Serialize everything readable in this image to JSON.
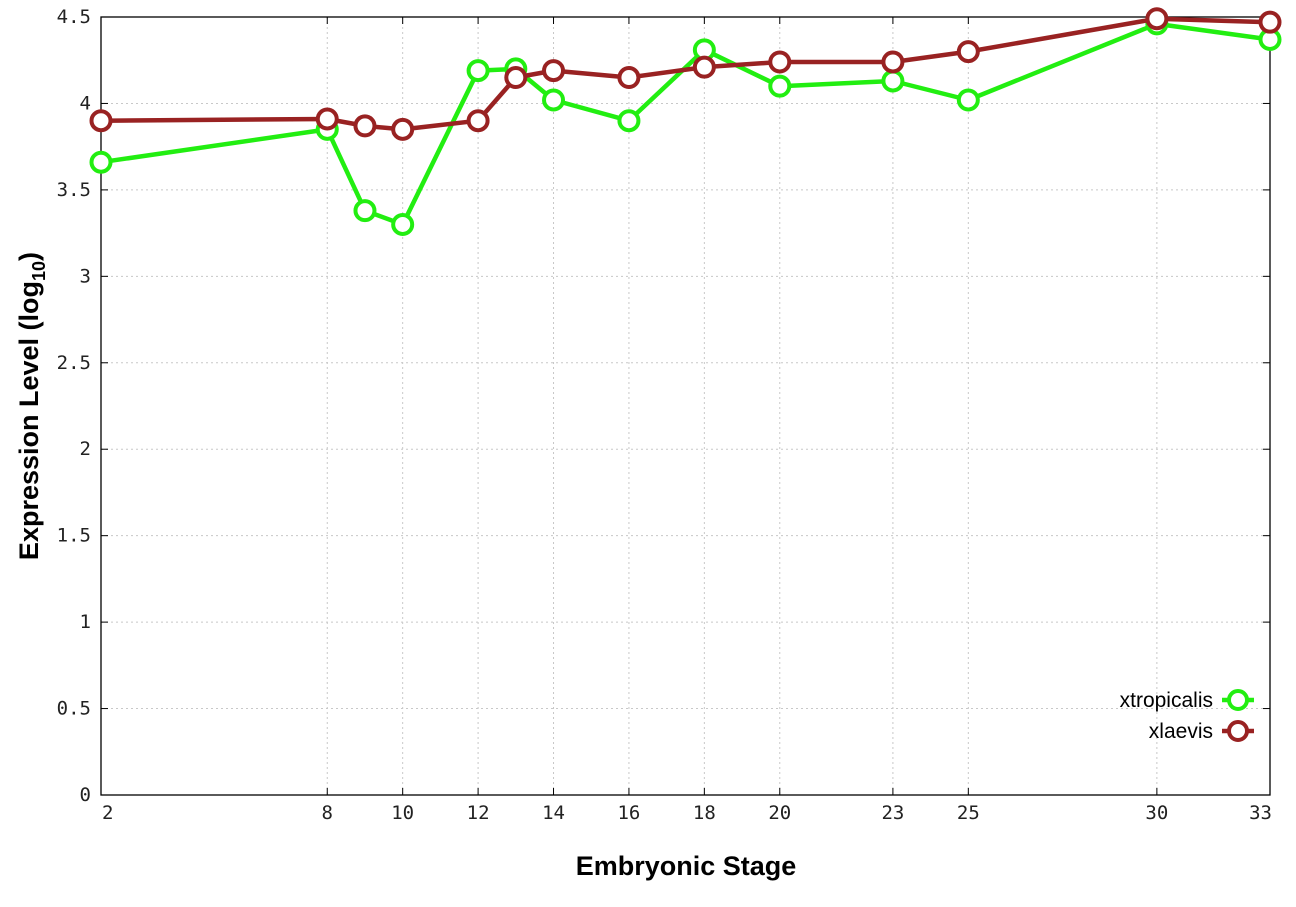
{
  "chart_data": {
    "type": "line",
    "xlabel": "Embryonic Stage",
    "ylabel": "Expression Level (log",
    "ylabel_sub": "10",
    "ylabel_suffix": ")",
    "x_ticks": [
      2,
      8,
      10,
      12,
      14,
      16,
      18,
      20,
      23,
      25,
      30,
      33
    ],
    "x_tick_labels": [
      "2",
      "8",
      "10",
      "12",
      "14",
      "16",
      "18",
      "20",
      "23",
      "25",
      "30",
      "33"
    ],
    "y_ticks": [
      0,
      0.5,
      1,
      1.5,
      2,
      2.5,
      3,
      3.5,
      4,
      4.5
    ],
    "y_tick_labels": [
      "0",
      "0.5",
      "1",
      "1.5",
      "2",
      "2.5",
      "3",
      "3.5",
      "4",
      "4.5"
    ],
    "ylim": [
      0,
      4.5
    ],
    "grid": true,
    "legend_position": "bottom-right",
    "series": [
      {
        "name": "xtropicalis",
        "color": "#22ee11",
        "x": [
          2,
          8,
          9,
          10,
          12,
          13,
          14,
          16,
          18,
          20,
          23,
          25,
          30,
          33
        ],
        "values": [
          3.66,
          3.85,
          3.38,
          3.3,
          4.19,
          4.2,
          4.02,
          3.9,
          4.31,
          4.1,
          4.13,
          4.02,
          4.46,
          4.37
        ]
      },
      {
        "name": "xlaevis",
        "color": "#992222",
        "x": [
          2,
          8,
          9,
          10,
          12,
          13,
          14,
          16,
          18,
          20,
          23,
          25,
          30,
          33
        ],
        "values": [
          3.9,
          3.91,
          3.87,
          3.85,
          3.9,
          4.15,
          4.19,
          4.15,
          4.21,
          4.24,
          4.24,
          4.3,
          4.49,
          4.47
        ]
      }
    ]
  }
}
